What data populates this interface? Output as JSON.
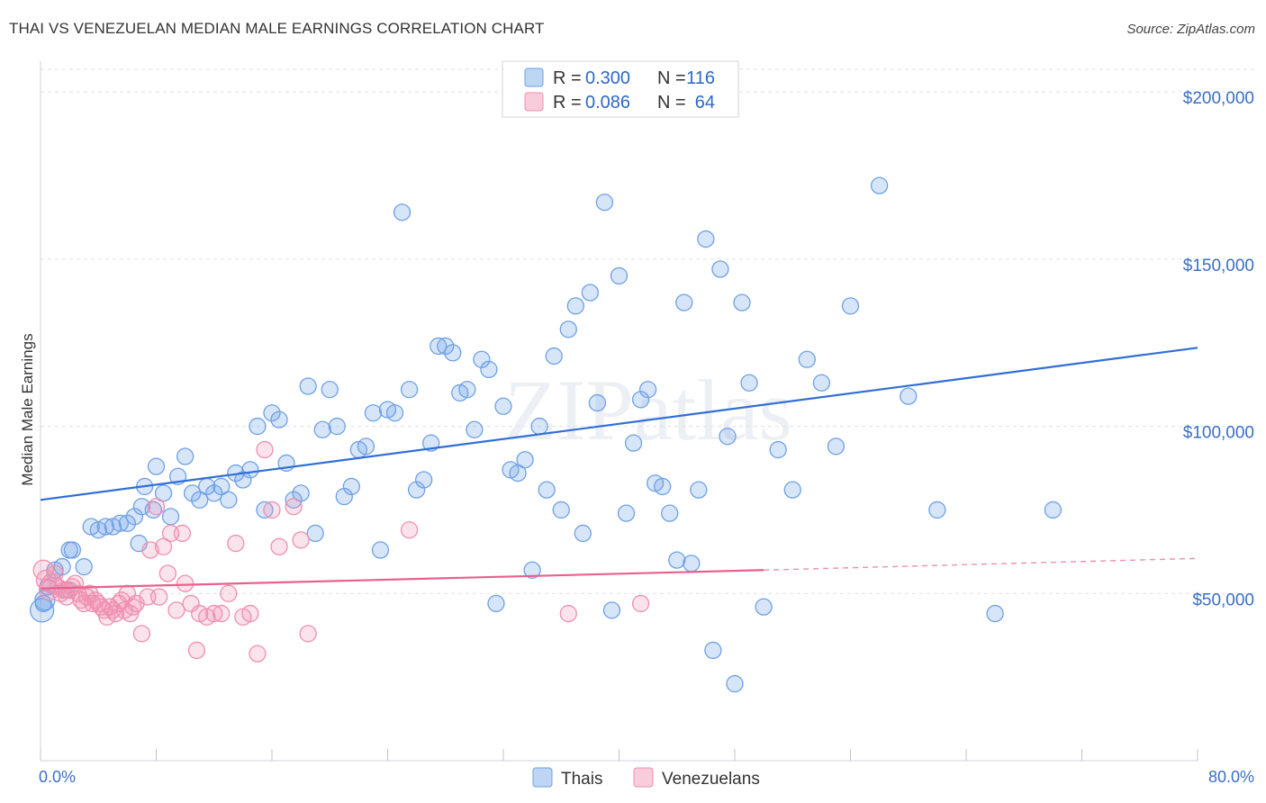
{
  "title": "THAI VS VENEZUELAN MEDIAN MALE EARNINGS CORRELATION CHART",
  "source": "Source: ZipAtlas.com",
  "watermark": "ZIPatlas",
  "chart_data": {
    "type": "scatter",
    "xlabel": "",
    "ylabel": "Median Male Earnings",
    "xlim": [
      0,
      80
    ],
    "ylim": [
      0,
      210000
    ],
    "x_tick_labels": [
      "0.0%",
      "80.0%"
    ],
    "y_ticks": [
      50000,
      100000,
      150000,
      200000
    ],
    "y_tick_labels": [
      "$50,000",
      "$100,000",
      "$150,000",
      "$200,000"
    ],
    "grid": true,
    "legend": {
      "placement": "top-center",
      "entries": [
        {
          "r_label": "R = ",
          "r": "0.300",
          "n_label": "N = ",
          "n": "116",
          "color": "#6ea1e6"
        },
        {
          "r_label": "R = ",
          "r": "0.086",
          "n_label": "N = ",
          "n": "64",
          "color": "#f08eb0"
        }
      ]
    },
    "series": [
      {
        "name": "Thais",
        "color": "#6ea1e6",
        "trend": {
          "x": [
            0,
            80
          ],
          "y": [
            78000,
            123500
          ],
          "color": "#2f6fd6"
        },
        "points": [
          [
            0.1,
            45000
          ],
          [
            0.3,
            48000
          ],
          [
            0.5,
            52000
          ],
          [
            1.0,
            57000
          ],
          [
            1.5,
            58000
          ],
          [
            2.0,
            63000
          ],
          [
            2.2,
            63000
          ],
          [
            3.0,
            58000
          ],
          [
            3.5,
            70000
          ],
          [
            4.0,
            69000
          ],
          [
            4.5,
            70000
          ],
          [
            5.0,
            70000
          ],
          [
            5.5,
            71000
          ],
          [
            6.0,
            71000
          ],
          [
            6.5,
            73000
          ],
          [
            7.0,
            76000
          ],
          [
            7.2,
            82000
          ],
          [
            7.8,
            75000
          ],
          [
            8.0,
            88000
          ],
          [
            8.5,
            80000
          ],
          [
            9.0,
            73000
          ],
          [
            9.5,
            85000
          ],
          [
            10.0,
            91000
          ],
          [
            10.5,
            80000
          ],
          [
            11.0,
            78000
          ],
          [
            11.5,
            82000
          ],
          [
            12.0,
            80000
          ],
          [
            12.5,
            82000
          ],
          [
            13.0,
            78000
          ],
          [
            13.5,
            86000
          ],
          [
            14.0,
            84000
          ],
          [
            14.5,
            87000
          ],
          [
            15.0,
            100000
          ],
          [
            15.5,
            75000
          ],
          [
            16.0,
            104000
          ],
          [
            16.5,
            102000
          ],
          [
            17.0,
            89000
          ],
          [
            17.5,
            78000
          ],
          [
            18.0,
            80000
          ],
          [
            18.5,
            112000
          ],
          [
            19.0,
            68000
          ],
          [
            19.5,
            99000
          ],
          [
            20.0,
            111000
          ],
          [
            20.5,
            100000
          ],
          [
            21.0,
            79000
          ],
          [
            21.5,
            82000
          ],
          [
            22.0,
            93000
          ],
          [
            22.5,
            94000
          ],
          [
            23.0,
            104000
          ],
          [
            23.5,
            63000
          ],
          [
            24.0,
            105000
          ],
          [
            24.5,
            104000
          ],
          [
            25.0,
            164000
          ],
          [
            25.5,
            111000
          ],
          [
            26.0,
            81000
          ],
          [
            26.5,
            84000
          ],
          [
            27.0,
            95000
          ],
          [
            27.5,
            124000
          ],
          [
            28.0,
            124000
          ],
          [
            28.5,
            122000
          ],
          [
            29.0,
            110000
          ],
          [
            29.5,
            111000
          ],
          [
            30.0,
            99000
          ],
          [
            30.5,
            120000
          ],
          [
            31.0,
            117000
          ],
          [
            31.5,
            47000
          ],
          [
            32.0,
            106000
          ],
          [
            32.5,
            87000
          ],
          [
            33.0,
            86000
          ],
          [
            33.5,
            90000
          ],
          [
            34.0,
            57000
          ],
          [
            34.5,
            100000
          ],
          [
            35.0,
            81000
          ],
          [
            35.5,
            121000
          ],
          [
            36.0,
            75000
          ],
          [
            36.5,
            129000
          ],
          [
            37.0,
            136000
          ],
          [
            37.5,
            68000
          ],
          [
            38.0,
            140000
          ],
          [
            38.5,
            107000
          ],
          [
            39.0,
            167000
          ],
          [
            39.5,
            45000
          ],
          [
            40.0,
            145000
          ],
          [
            40.5,
            74000
          ],
          [
            41.0,
            95000
          ],
          [
            41.5,
            108000
          ],
          [
            42.0,
            111000
          ],
          [
            42.5,
            83000
          ],
          [
            43.0,
            82000
          ],
          [
            43.5,
            74000
          ],
          [
            44.0,
            60000
          ],
          [
            44.5,
            137000
          ],
          [
            45.0,
            59000
          ],
          [
            45.5,
            81000
          ],
          [
            46.0,
            156000
          ],
          [
            46.5,
            33000
          ],
          [
            47.0,
            147000
          ],
          [
            47.5,
            97000
          ],
          [
            48.0,
            23000
          ],
          [
            48.5,
            137000
          ],
          [
            49.0,
            113000
          ],
          [
            50.0,
            46000
          ],
          [
            51.0,
            93000
          ],
          [
            52.0,
            81000
          ],
          [
            53.0,
            120000
          ],
          [
            54.0,
            113000
          ],
          [
            55.0,
            94000
          ],
          [
            56.0,
            136000
          ],
          [
            58.0,
            172000
          ],
          [
            60.0,
            109000
          ],
          [
            62.0,
            75000
          ],
          [
            66.0,
            44000
          ],
          [
            70.0,
            75000
          ],
          [
            0.2,
            47000
          ],
          [
            1.8,
            51000
          ],
          [
            6.8,
            65000
          ]
        ]
      },
      {
        "name": "Venezuelans",
        "color": "#f08eb0",
        "trend": {
          "x": [
            0,
            50
          ],
          "y": [
            51500,
            57000
          ],
          "x_dashed_end": 80,
          "y_dashed_end": 60500,
          "color": "#e8618c"
        },
        "points": [
          [
            0.2,
            57000
          ],
          [
            0.4,
            54000
          ],
          [
            0.6,
            51000
          ],
          [
            0.8,
            53000
          ],
          [
            1.0,
            56000
          ],
          [
            1.2,
            52000
          ],
          [
            1.4,
            50000
          ],
          [
            1.6,
            51000
          ],
          [
            1.8,
            49000
          ],
          [
            2.0,
            51000
          ],
          [
            2.2,
            52000
          ],
          [
            2.4,
            53000
          ],
          [
            2.6,
            50000
          ],
          [
            2.8,
            48000
          ],
          [
            3.0,
            47000
          ],
          [
            3.2,
            49000
          ],
          [
            3.4,
            50000
          ],
          [
            3.6,
            47000
          ],
          [
            3.8,
            48000
          ],
          [
            4.0,
            47000
          ],
          [
            4.2,
            46000
          ],
          [
            4.4,
            45000
          ],
          [
            4.6,
            43000
          ],
          [
            4.8,
            46000
          ],
          [
            5.0,
            45000
          ],
          [
            5.2,
            44000
          ],
          [
            5.4,
            47000
          ],
          [
            5.6,
            48000
          ],
          [
            5.8,
            45000
          ],
          [
            6.0,
            50000
          ],
          [
            6.2,
            44000
          ],
          [
            6.4,
            46000
          ],
          [
            6.6,
            47000
          ],
          [
            7.0,
            38000
          ],
          [
            7.4,
            49000
          ],
          [
            7.6,
            63000
          ],
          [
            8.0,
            76000
          ],
          [
            8.2,
            49000
          ],
          [
            8.5,
            64000
          ],
          [
            8.8,
            56000
          ],
          [
            9.0,
            68000
          ],
          [
            9.4,
            45000
          ],
          [
            9.8,
            68000
          ],
          [
            10.0,
            53000
          ],
          [
            10.4,
            47000
          ],
          [
            10.8,
            33000
          ],
          [
            11.0,
            44000
          ],
          [
            11.5,
            43000
          ],
          [
            12.0,
            44000
          ],
          [
            12.5,
            44000
          ],
          [
            13.0,
            50000
          ],
          [
            13.5,
            65000
          ],
          [
            14.0,
            43000
          ],
          [
            14.5,
            44000
          ],
          [
            15.0,
            32000
          ],
          [
            15.5,
            93000
          ],
          [
            16.0,
            75000
          ],
          [
            16.5,
            64000
          ],
          [
            17.5,
            76000
          ],
          [
            18.0,
            66000
          ],
          [
            18.5,
            38000
          ],
          [
            25.5,
            69000
          ],
          [
            36.5,
            44000
          ],
          [
            41.5,
            47000
          ]
        ]
      }
    ]
  },
  "bottom_legend": [
    {
      "label": "Thais",
      "color": "#6ea1e6"
    },
    {
      "label": "Venezuelans",
      "color": "#f08eb0"
    }
  ]
}
